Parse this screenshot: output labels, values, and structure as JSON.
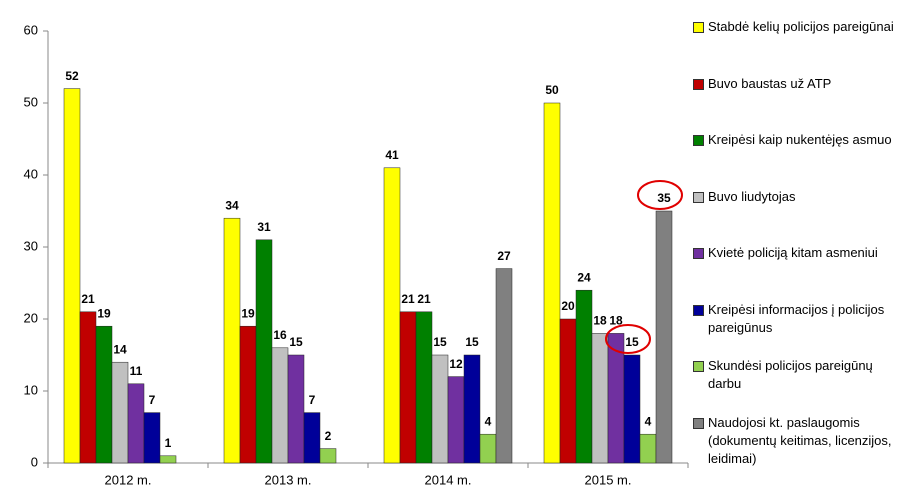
{
  "chart_data": {
    "type": "bar",
    "categories": [
      "2012 m.",
      "2013 m.",
      "2014 m.",
      "2015 m."
    ],
    "series": [
      {
        "name": "Stabdė kelių policijos pareigūnai",
        "color": "#ffff00",
        "values": [
          52,
          34,
          41,
          50
        ]
      },
      {
        "name": "Buvo baustas už ATP",
        "color": "#c00000",
        "values": [
          21,
          19,
          21,
          20
        ]
      },
      {
        "name": "Kreipėsi kaip nukentėjęs asmuo",
        "color": "#008000",
        "values": [
          19,
          31,
          21,
          24
        ]
      },
      {
        "name": "Buvo liudytojas",
        "color": "#c0c0c0",
        "values": [
          14,
          16,
          15,
          18
        ]
      },
      {
        "name": "Kvietė policiją kitam asmeniui",
        "color": "#7030a0",
        "values": [
          11,
          15,
          12,
          18
        ]
      },
      {
        "name": "Kreipėsi informacijos į policijos pareigūnus",
        "color": "#000099",
        "values": [
          7,
          7,
          15,
          15
        ]
      },
      {
        "name": "Skundėsi policijos pareigūnų darbu",
        "color": "#92d050",
        "values": [
          1,
          2,
          4,
          4
        ]
      },
      {
        "name": "Naudojosi kt. paslaugomis (dokumentų keitimas, licenzijos, leidimai)",
        "color": "#808080",
        "values": [
          null,
          null,
          27,
          35
        ]
      }
    ],
    "ylim": [
      0,
      60
    ],
    "yticks": [
      0,
      10,
      20,
      30,
      40,
      50,
      60
    ],
    "legend": "right"
  }
}
